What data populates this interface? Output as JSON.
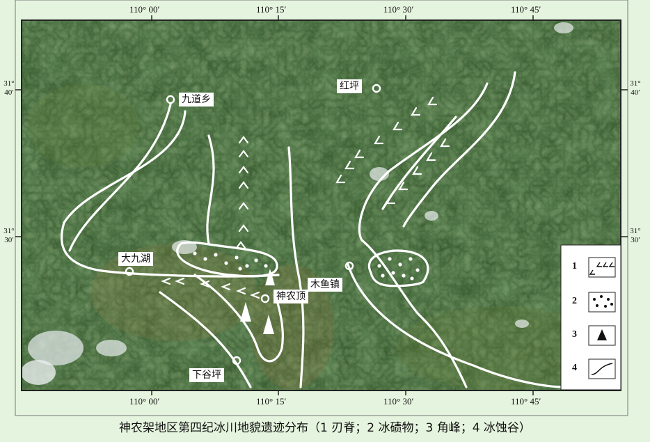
{
  "map": {
    "longitude_ticks": [
      "110° 00′",
      "110° 15′",
      "110° 30′",
      "110° 45′"
    ],
    "latitude_ticks": [
      {
        "deg": "31°",
        "min": "40′"
      },
      {
        "deg": "31°",
        "min": "30′"
      }
    ],
    "places": {
      "jiudaoxiang": "九道乡",
      "hongping": "红坪",
      "dajiuhu": "大九湖",
      "shennongding": "神农顶",
      "muyuzhen": "木鱼镇",
      "xiaguping": "下谷坪"
    },
    "legend": {
      "items": [
        {
          "number": "1",
          "symbol": "glacial-ridge-arrows"
        },
        {
          "number": "2",
          "symbol": "moraine-dots"
        },
        {
          "number": "3",
          "symbol": "horn-peak-triangle"
        },
        {
          "number": "4",
          "symbol": "glacial-valley-line"
        }
      ]
    },
    "colors": {
      "terrain_dark": "#1d3a1c",
      "terrain_mid": "#3f6b33",
      "terrain_light": "#7a8f4e",
      "symbols": "#ffffff",
      "caption_band": "#e5f4de"
    }
  },
  "caption": "神农架地区第四纪冰川地貌遗迹分布（1 刃脊；2 冰碛物；3 角峰；4 冰蚀谷）"
}
